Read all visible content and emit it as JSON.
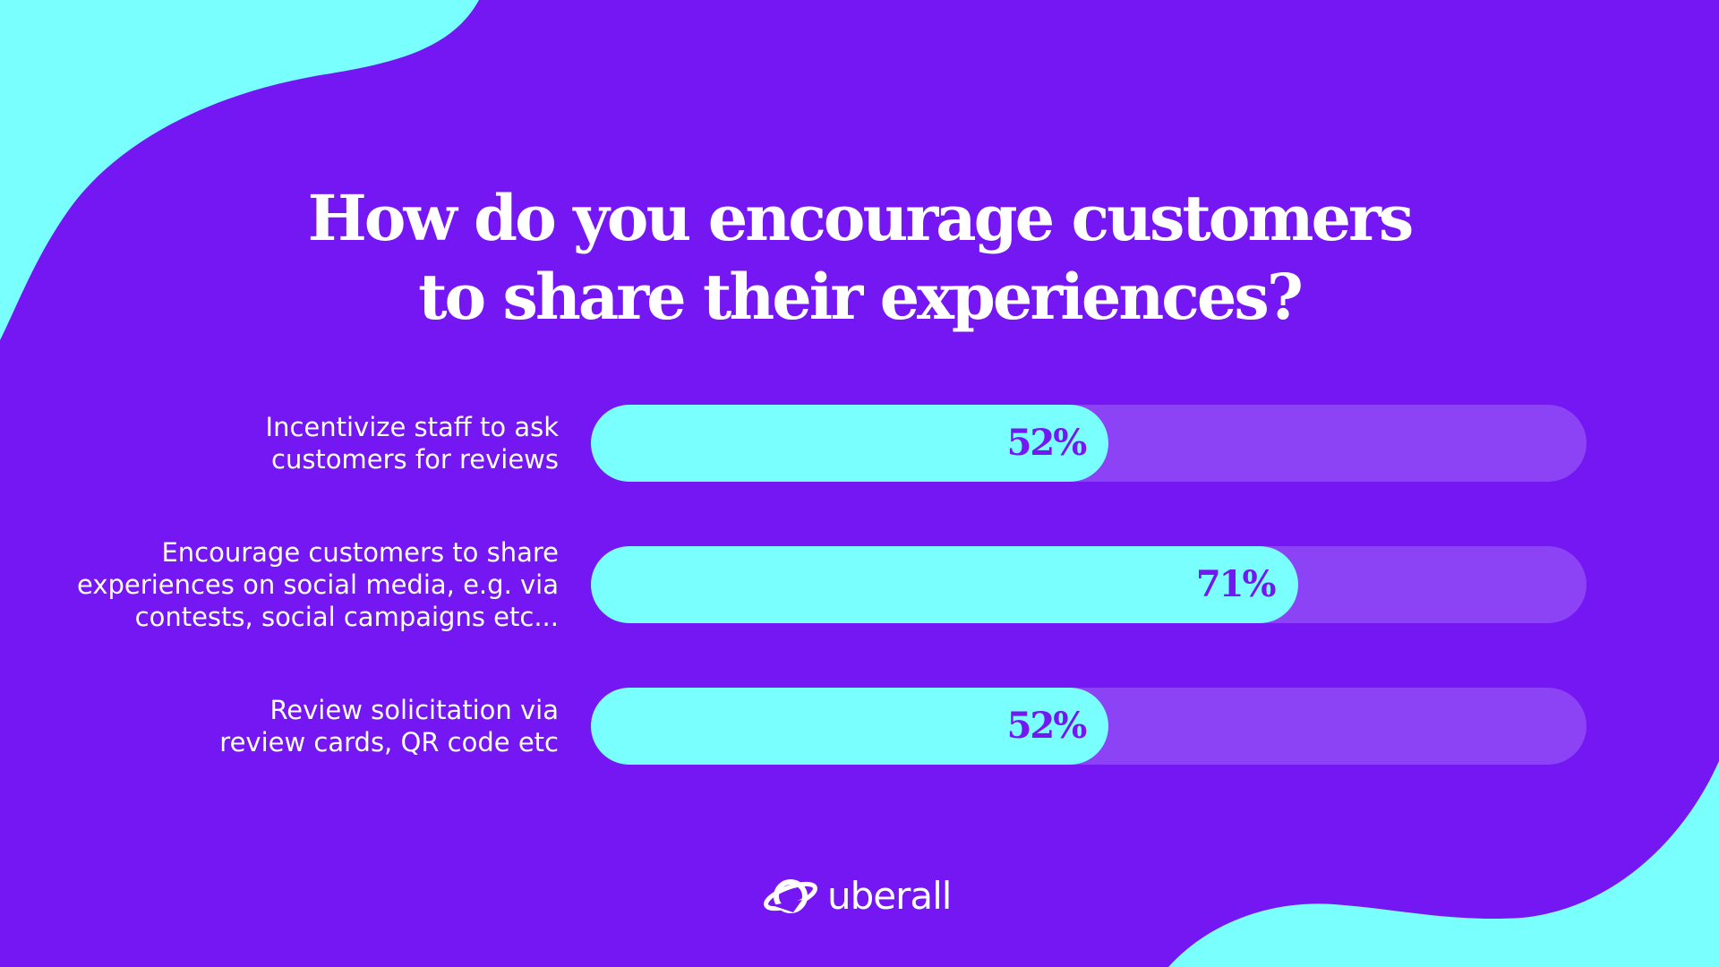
{
  "colors": {
    "background": "#7517f2",
    "accent": "#7affff",
    "track": "#8c43f6",
    "text": "#ffffff",
    "value_text": "#7517f2"
  },
  "brand": {
    "name": "uberall",
    "icon": "planet-icon"
  },
  "chart_data": {
    "type": "bar",
    "orientation": "horizontal",
    "title": "How do you encourage customers to share their experiences?",
    "title_lines": [
      "How do you encourage customers",
      "to share their experiences?"
    ],
    "xlim": [
      0,
      100
    ],
    "unit": "%",
    "categories": [
      "Incentivize staff to ask customers for reviews",
      "Encourage customers to share experiences on social media, e.g. via contests, social campaigns etc...",
      "Review solicitation via review cards, QR code etc"
    ],
    "values": [
      52,
      71,
      52
    ],
    "rows": [
      {
        "label_lines": [
          "Incentivize staff to ask",
          "customers for reviews"
        ],
        "value": 52,
        "value_label": "52%"
      },
      {
        "label_lines": [
          "Encourage customers to share",
          "experiences on social media, e.g. via",
          "contests, social campaigns etc..."
        ],
        "value": 71,
        "value_label": "71%"
      },
      {
        "label_lines": [
          "Review solicitation via",
          "review cards, QR code etc"
        ],
        "value": 52,
        "value_label": "52%"
      }
    ]
  }
}
